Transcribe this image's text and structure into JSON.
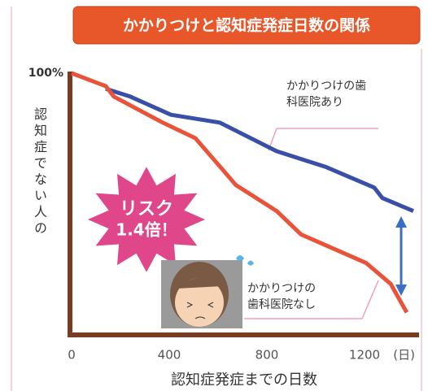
{
  "chart_data": {
    "type": "line",
    "title": "かかりつけと認知症発症日数の関係",
    "y_label": "認知症でない人の",
    "x_label": "認知症発症までの日数",
    "x_unit": "(日)",
    "annotation": [
      "リスク",
      "1.4倍！"
    ],
    "xlim": [
      0,
      1400
    ],
    "ylim": [
      0,
      100
    ],
    "xticks": [
      0,
      400,
      800,
      1200
    ],
    "yticks": [
      {
        "value": 100,
        "label": "100%"
      }
    ],
    "series": [
      {
        "name": "かかりつけの歯科医院あり",
        "color": "#3a4fa8",
        "x": [
          140,
          240,
          407,
          607,
          840,
          1040,
          1240,
          1273,
          1400
        ],
        "values": [
          94,
          91,
          84,
          81,
          70,
          64,
          56,
          52,
          47
        ]
      },
      {
        "name": "かかりつけの歯科医院なし",
        "color": "#e8533a",
        "x": [
          0,
          140,
          173,
          373,
          507,
          673,
          840,
          940,
          1207,
          1307,
          1373
        ],
        "values": [
          100,
          95,
          91,
          81,
          75,
          57,
          47,
          38,
          27,
          19,
          8
        ]
      }
    ]
  }
}
